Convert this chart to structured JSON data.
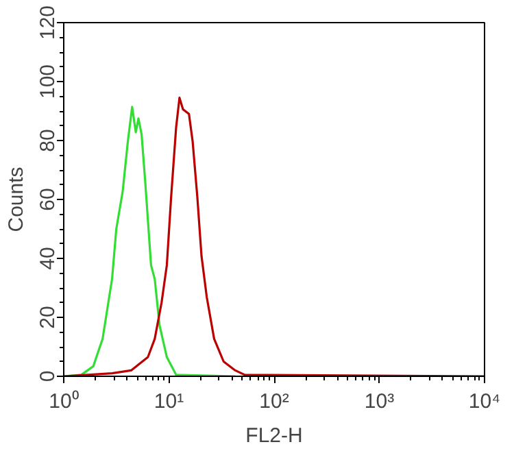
{
  "chart_data": {
    "type": "line",
    "xlabel": "FL2-H",
    "ylabel": "Counts",
    "log": "x",
    "grid": false,
    "xlim": [
      1,
      10000
    ],
    "xticks": [
      {
        "value": 1,
        "label": "10⁰"
      },
      {
        "value": 10,
        "label": "10¹"
      },
      {
        "value": 100,
        "label": "10²"
      },
      {
        "value": 1000,
        "label": "10³"
      },
      {
        "value": 10000,
        "label": "10⁴"
      }
    ],
    "ylim": [
      0,
      120
    ],
    "yticks": [
      0,
      20,
      40,
      60,
      80,
      100,
      120
    ],
    "series": [
      {
        "color": "#33dd33",
        "x": [
          1,
          1.47,
          1.91,
          2.34,
          2.88,
          3.16,
          3.63,
          4.07,
          4.47,
          4.84,
          5.13,
          5.5,
          5.96,
          6.76,
          7.33,
          8.13,
          9.55,
          11.7,
          42.7
        ],
        "values": [
          0,
          0.5,
          3.4,
          12.7,
          33,
          50,
          62.6,
          79.7,
          91.4,
          82.8,
          87.5,
          82,
          65.7,
          37.7,
          33,
          17.4,
          6.5,
          0.5,
          0
        ]
      },
      {
        "color": "#bb0000",
        "x": [
          1,
          2.88,
          4.37,
          6.31,
          7.33,
          8.51,
          9.55,
          10.5,
          11.7,
          12.6,
          13.6,
          15.5,
          16.8,
          18.6,
          20.4,
          22.9,
          26.9,
          33.1,
          42.7,
          52.5,
          10000
        ],
        "values": [
          0,
          1,
          2,
          6.5,
          12.7,
          25,
          37.7,
          61,
          84.4,
          94.5,
          90.6,
          89,
          79.7,
          61,
          40.8,
          26.8,
          12.7,
          5,
          2,
          0.5,
          0
        ]
      }
    ]
  }
}
